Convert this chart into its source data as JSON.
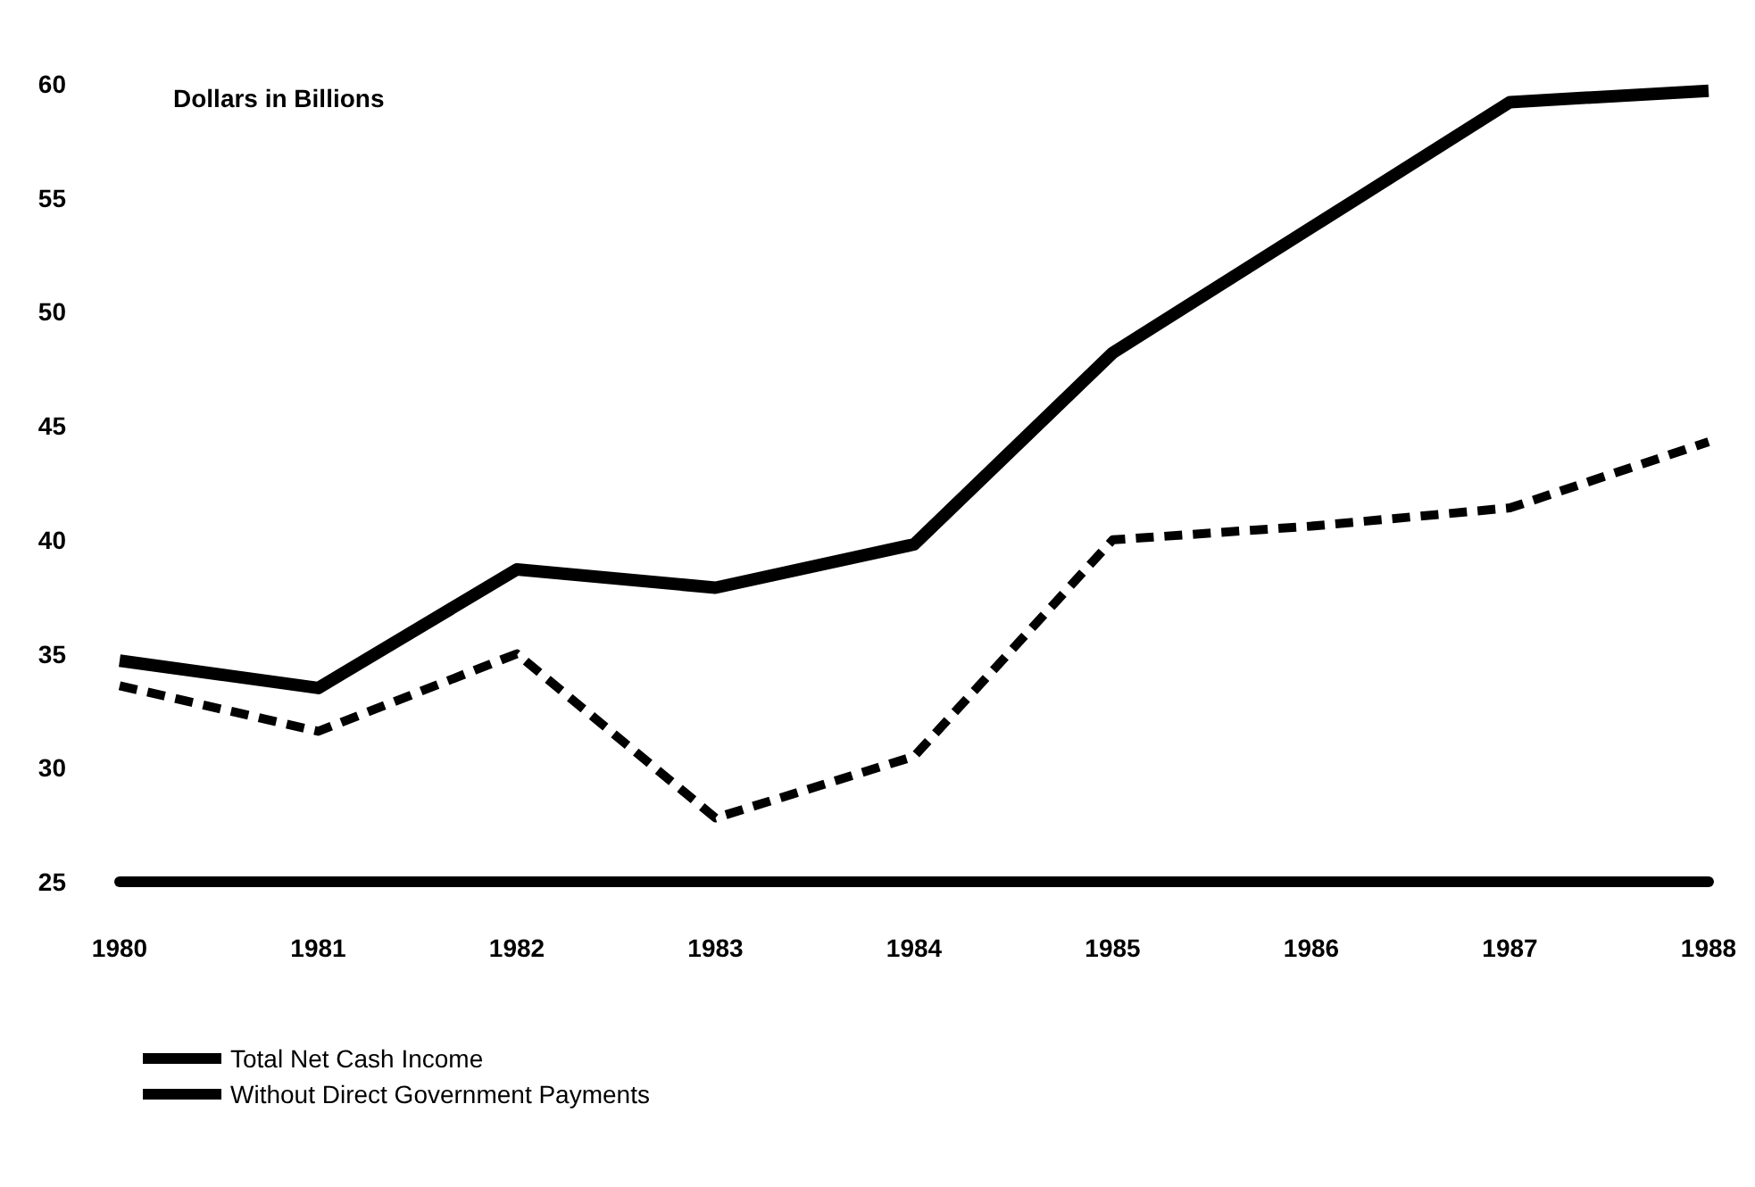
{
  "chart_data": {
    "type": "line",
    "ylabel": "Dollars in Billions",
    "categories": [
      "1980",
      "1981",
      "1982",
      "1983",
      "1984",
      "1985",
      "1986",
      "1987",
      "1988"
    ],
    "series": [
      {
        "name": "Total Net Cash Income",
        "color": "#000000",
        "line_style": "solid",
        "values": [
          34.7,
          33.5,
          38.7,
          37.9,
          39.8,
          48.2,
          53.7,
          59.2,
          59.7
        ]
      },
      {
        "name": "Without Direct Government Payments",
        "color": "#000000",
        "line_style": "dashed",
        "values": [
          33.6,
          31.6,
          35,
          27.8,
          30.5,
          40,
          40.6,
          41.4,
          44.3
        ]
      }
    ],
    "ylim": [
      25,
      60
    ],
    "yticks": [
      25,
      30,
      35,
      40,
      45,
      50,
      55,
      60
    ],
    "grid": false,
    "legend": "bottom left",
    "marker": "none"
  }
}
